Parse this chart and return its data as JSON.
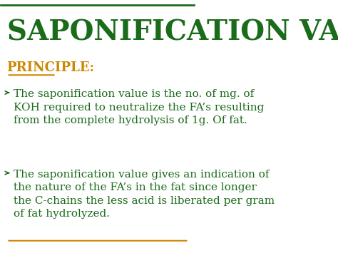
{
  "title": "SAPONIFICATION VALUE",
  "title_color": "#1a6b1a",
  "title_fontsize": 28,
  "background_color": "#ffffff",
  "principle_label": "PRINCIPLE:",
  "principle_color": "#cc8800",
  "principle_fontsize": 13,
  "bullet1": "The saponification value is the no. of mg. of\nKOH required to neutralize the FA’s resulting\nfrom the complete hydrolysis of 1g. Of fat.",
  "bullet2": "The saponification value gives an indication of\nthe nature of the FA’s in the fat since longer\nthe C-chains the less acid is liberated per gram\nof fat hydrolyzed.",
  "bullet_color": "#1a6b1a",
  "bullet_fontsize": 11,
  "arrow_color": "#1a6b1a",
  "underline_color": "#cc8800",
  "bottom_line_color": "#cc8800"
}
